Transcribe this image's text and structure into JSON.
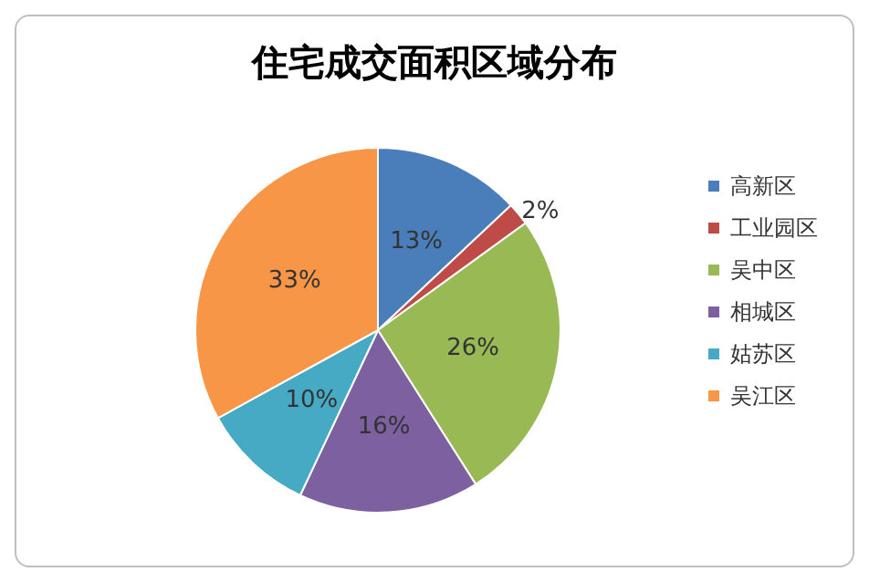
{
  "chart_data": {
    "type": "pie",
    "title": "住宅成交面积区域分布",
    "categories": [
      "高新区",
      "工业园区",
      "吴中区",
      "相城区",
      "姑苏区",
      "吴江区"
    ],
    "values": [
      13,
      2,
      26,
      16,
      10,
      33
    ],
    "value_labels": [
      "13%",
      "2%",
      "26%",
      "16%",
      "10%",
      "33%"
    ],
    "colors": [
      "#4a7ebb",
      "#be4b48",
      "#98b954",
      "#7d60a0",
      "#46aac5",
      "#f79646"
    ],
    "legend": "right"
  }
}
